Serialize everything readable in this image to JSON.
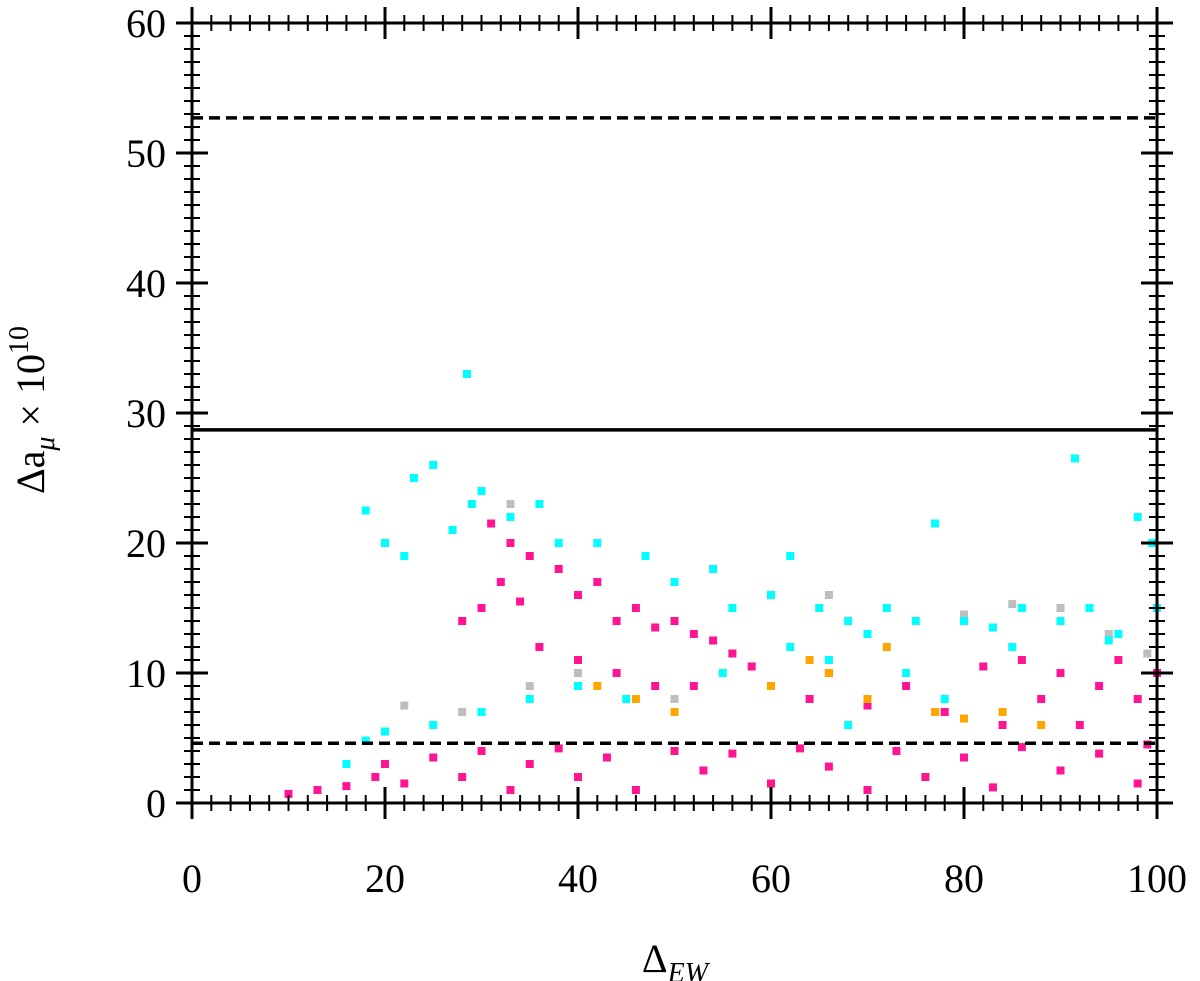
{
  "chart_data": {
    "type": "scatter",
    "xlabel": [
      "Δ",
      "EW"
    ],
    "ylabel": [
      "Δa",
      "μ",
      " × 10",
      "10"
    ],
    "xlim": [
      0,
      100
    ],
    "ylim": [
      0,
      60
    ],
    "xticks": [
      0,
      20,
      40,
      60,
      80,
      100
    ],
    "yticks": [
      0,
      10,
      20,
      30,
      40,
      50,
      60
    ],
    "hlines": [
      {
        "value": 28.7,
        "style": "solid"
      },
      {
        "value": 52.7,
        "style": "dashed"
      },
      {
        "value": 4.6,
        "style": "dashed"
      }
    ],
    "series": [
      {
        "color": "#bebebe",
        "x": [
          22,
          28,
          30,
          33,
          40,
          50,
          66,
          70,
          80,
          85,
          90,
          95,
          99,
          35
        ],
        "y": [
          7.5,
          7,
          24,
          23,
          10,
          8,
          16,
          13,
          14.5,
          15.3,
          15,
          13,
          11.5,
          9
        ]
      },
      {
        "color": "#00ffff",
        "x": [
          16,
          18,
          20,
          22,
          23,
          25,
          27,
          29,
          30,
          33,
          36,
          38,
          42,
          47,
          50,
          54,
          56,
          60,
          62,
          65,
          68,
          70,
          72,
          75,
          77,
          80,
          83,
          86,
          90,
          93,
          96,
          98,
          100,
          28.5,
          91.5,
          20,
          25,
          30,
          35,
          40,
          62,
          66,
          74,
          78,
          85,
          95,
          99.5,
          18,
          45,
          55,
          68
        ],
        "y": [
          3,
          4.8,
          20,
          19,
          25,
          26,
          21,
          23,
          24,
          22,
          23,
          20,
          20,
          19,
          17,
          18,
          15,
          16,
          19,
          15,
          14,
          13,
          15,
          14,
          21.5,
          14,
          13.5,
          15,
          14,
          15,
          13,
          22,
          15,
          33,
          26.5,
          5.5,
          6,
          7,
          8,
          9,
          12,
          11,
          10,
          8,
          12,
          12.5,
          20,
          22.5,
          8,
          10,
          6
        ]
      },
      {
        "color": "#ff1493",
        "x": [
          10,
          13,
          16,
          19,
          20,
          22,
          25,
          28,
          30,
          33,
          35,
          38,
          40,
          43,
          46,
          50,
          53,
          56,
          60,
          63,
          66,
          70,
          73,
          76,
          80,
          83,
          86,
          90,
          94,
          98,
          99,
          31,
          33,
          35,
          32,
          30,
          34,
          38,
          40,
          42,
          44,
          46,
          48,
          50,
          52,
          54,
          56,
          58,
          36,
          40,
          44,
          48,
          52,
          28,
          60,
          64,
          66,
          70,
          74,
          78,
          82,
          86,
          90,
          94,
          98,
          84,
          92,
          96,
          100,
          88
        ],
        "y": [
          0.7,
          1,
          1.3,
          2,
          3,
          1.5,
          3.5,
          2,
          4,
          1,
          3,
          4.2,
          2,
          3.5,
          1,
          4,
          2.5,
          3.8,
          1.5,
          4.2,
          2.8,
          1,
          4,
          2,
          3.5,
          1.2,
          4.3,
          2.5,
          3.8,
          1.5,
          4.5,
          21.5,
          20,
          19,
          17,
          15,
          15.5,
          18,
          16,
          17,
          14,
          15,
          13.5,
          14,
          13,
          12.5,
          11.5,
          10.5,
          12,
          11,
          10,
          9,
          9,
          14,
          9,
          8,
          10,
          7.5,
          9,
          7,
          10.5,
          11,
          10,
          9,
          8,
          6,
          6,
          11,
          10,
          8
        ]
      },
      {
        "color": "#ffa500",
        "x": [
          42,
          46,
          50,
          60,
          64,
          66,
          70,
          72,
          77,
          80,
          84,
          88
        ],
        "y": [
          9,
          8,
          7,
          9,
          11,
          10,
          8,
          12,
          7,
          6.5,
          7,
          6
        ]
      }
    ]
  }
}
